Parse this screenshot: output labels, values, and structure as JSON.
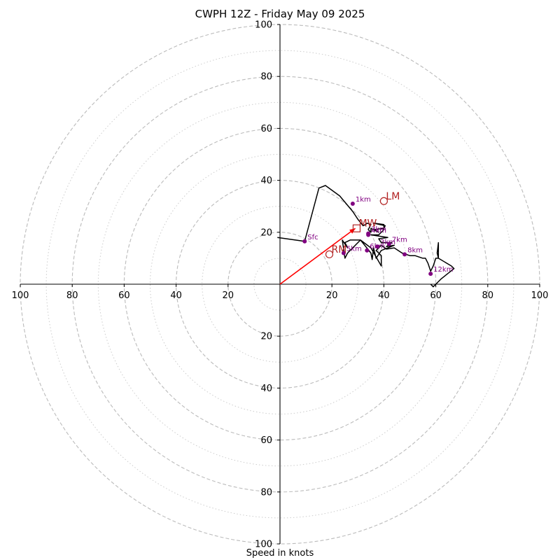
{
  "chart_data": {
    "type": "hodograph",
    "title": "CWPH 12Z - Friday May 09 2025",
    "xlabel": "Speed in knots",
    "ylabel": "",
    "xlim": [
      -100,
      100
    ],
    "ylim": [
      -100,
      100
    ],
    "rings_major": [
      20,
      40,
      60,
      80,
      100
    ],
    "rings_minor": [
      10,
      30,
      50,
      70,
      90
    ],
    "x_tick_labels": [
      "100",
      "80",
      "60",
      "40",
      "20",
      "",
      "20",
      "40",
      "60",
      "80",
      "100"
    ],
    "x_tick_values": [
      -100,
      -80,
      -60,
      -40,
      -20,
      0,
      20,
      40,
      60,
      80,
      100
    ],
    "y_tick_labels": [
      "100",
      "80",
      "60",
      "40",
      "20",
      "",
      "20",
      "40",
      "60",
      "80",
      "100"
    ],
    "y_tick_values": [
      100,
      80,
      60,
      40,
      20,
      0,
      -20,
      -40,
      -60,
      -80,
      -100
    ],
    "colors": {
      "trace": "#000000",
      "height_points": "#800080",
      "markers": "#b22222",
      "storm_vector": "#ff0000",
      "rings": "#bbbbbb"
    },
    "trace": [
      [
        -1,
        18
      ],
      [
        9.5,
        16.5
      ],
      [
        15,
        37
      ],
      [
        17.5,
        38
      ],
      [
        23,
        34
      ],
      [
        28,
        28
      ],
      [
        30,
        25
      ],
      [
        32,
        22.5
      ],
      [
        33,
        23
      ],
      [
        33.5,
        23.5
      ],
      [
        35,
        23
      ],
      [
        34,
        21
      ],
      [
        35,
        20
      ],
      [
        35,
        21.5
      ],
      [
        38,
        20
      ],
      [
        36,
        21
      ],
      [
        40,
        21.5
      ],
      [
        40.5,
        22.5
      ],
      [
        36,
        23.5
      ],
      [
        40,
        23
      ],
      [
        40,
        21
      ],
      [
        38,
        19
      ],
      [
        35,
        19
      ],
      [
        41.5,
        18
      ],
      [
        38,
        17.5
      ],
      [
        39,
        16
      ],
      [
        43,
        16
      ],
      [
        41,
        14.5
      ],
      [
        44,
        15
      ],
      [
        39,
        13
      ],
      [
        37,
        10
      ],
      [
        36,
        14
      ],
      [
        35.5,
        9.5
      ],
      [
        35,
        12
      ],
      [
        31,
        17
      ],
      [
        27,
        17
      ],
      [
        25,
        16
      ],
      [
        26,
        14
      ],
      [
        24,
        17
      ],
      [
        25,
        10
      ],
      [
        26,
        12
      ],
      [
        31,
        17
      ],
      [
        35,
        14
      ],
      [
        39,
        7
      ],
      [
        39,
        11
      ],
      [
        37,
        13
      ],
      [
        39,
        15
      ],
      [
        41,
        13.5
      ],
      [
        44,
        14
      ],
      [
        47,
        12
      ],
      [
        50,
        11
      ],
      [
        52,
        11
      ],
      [
        55,
        10
      ],
      [
        56,
        10
      ],
      [
        57,
        8
      ],
      [
        58,
        5
      ],
      [
        59,
        7
      ],
      [
        60,
        10
      ],
      [
        61,
        10
      ],
      [
        61,
        15
      ],
      [
        61,
        16
      ],
      [
        60.5,
        12
      ],
      [
        61,
        10
      ],
      [
        66,
        7
      ],
      [
        67,
        6
      ],
      [
        62,
        2
      ],
      [
        60,
        0
      ],
      [
        59,
        -1
      ],
      [
        58,
        0
      ]
    ],
    "height_points": [
      {
        "label": "Sfc",
        "u": 9.5,
        "v": 16.5
      },
      {
        "label": "1km",
        "u": 28,
        "v": 31
      },
      {
        "label": "2km",
        "u": 34,
        "v": 19.5
      },
      {
        "label": "3km",
        "u": 37.5,
        "v": 14.5
      },
      {
        "label": "4km",
        "u": 34,
        "v": 19
      },
      {
        "label": "5km",
        "u": 24.5,
        "v": 12
      },
      {
        "label": "6km",
        "u": 33.5,
        "v": 13
      },
      {
        "label": "7km",
        "u": 42,
        "v": 15.5
      },
      {
        "label": "8km",
        "u": 48,
        "v": 11.5
      },
      {
        "label": "12km",
        "u": 58,
        "v": 4
      }
    ],
    "markers": [
      {
        "label": "RM",
        "u": 19,
        "v": 11.5,
        "shape": "circle"
      },
      {
        "label": "LM",
        "u": 40,
        "v": 32,
        "shape": "circle"
      },
      {
        "label": "MW",
        "u": 29.5,
        "v": 21.5,
        "shape": "square"
      }
    ],
    "storm_vector": {
      "u": 29,
      "v": 21.5
    }
  }
}
